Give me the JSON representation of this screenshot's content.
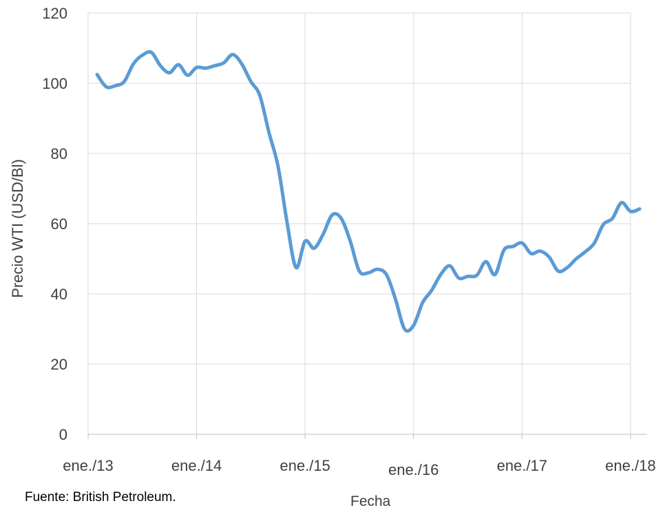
{
  "chart_data": {
    "type": "line",
    "title": "",
    "xlabel": "Fecha",
    "ylabel": "Precio WTI (USD/Bl)",
    "ylim": [
      0,
      120
    ],
    "yticks": [
      0,
      20,
      40,
      60,
      80,
      100,
      120
    ],
    "xlim": [
      "2013-01",
      "2018-01"
    ],
    "xticks": [
      "2013-01",
      "2014-01",
      "2015-01",
      "2016-01",
      "2017-01",
      "2018-01"
    ],
    "xtick_labels": [
      "ene./13",
      "ene./14",
      "ene./15",
      "ene./16",
      "ene./17",
      "ene./18"
    ],
    "grid": {
      "vertical": true,
      "horizontal": true
    },
    "legend": "none",
    "series": [
      {
        "color": "#5B9BD5",
        "x": [
          "2013-02",
          "2013-03",
          "2013-04",
          "2013-05",
          "2013-06",
          "2013-07",
          "2013-08",
          "2013-09",
          "2013-10",
          "2013-11",
          "2013-12",
          "2014-01",
          "2014-02",
          "2014-03",
          "2014-04",
          "2014-05",
          "2014-06",
          "2014-07",
          "2014-08",
          "2014-09",
          "2014-10",
          "2014-11",
          "2014-12",
          "2015-01",
          "2015-02",
          "2015-03",
          "2015-04",
          "2015-05",
          "2015-06",
          "2015-07",
          "2015-08",
          "2015-09",
          "2015-10",
          "2015-11",
          "2015-12",
          "2016-01",
          "2016-02",
          "2016-03",
          "2016-04",
          "2016-05",
          "2016-06",
          "2016-07",
          "2016-08",
          "2016-09",
          "2016-10",
          "2016-11",
          "2016-12",
          "2017-01",
          "2017-02",
          "2017-03",
          "2017-04",
          "2017-05",
          "2017-06",
          "2017-07",
          "2017-08",
          "2017-09",
          "2017-10",
          "2017-11",
          "2017-12",
          "2018-01",
          "2018-02"
        ],
        "values": [
          102.5,
          99.0,
          99.3,
          100.5,
          105.5,
          108.0,
          108.8,
          105.0,
          103.0,
          105.3,
          102.3,
          104.5,
          104.3,
          105.0,
          105.8,
          108.2,
          105.5,
          100.5,
          96.5,
          86.0,
          76.5,
          60.5,
          47.5,
          55.0,
          53.0,
          57.0,
          62.5,
          61.5,
          55.0,
          46.5,
          46.0,
          47.0,
          45.5,
          38.5,
          30.0,
          31.0,
          37.5,
          41.0,
          45.5,
          48.0,
          44.5,
          45.0,
          45.3,
          49.2,
          45.5,
          52.5,
          53.5,
          54.5,
          51.5,
          52.2,
          50.5,
          46.5,
          47.5,
          50.0,
          52.0,
          54.5,
          59.8,
          61.5,
          66.0,
          63.5,
          64.2
        ]
      }
    ]
  },
  "footer": {
    "source": "Fuente: British Petroleum."
  }
}
